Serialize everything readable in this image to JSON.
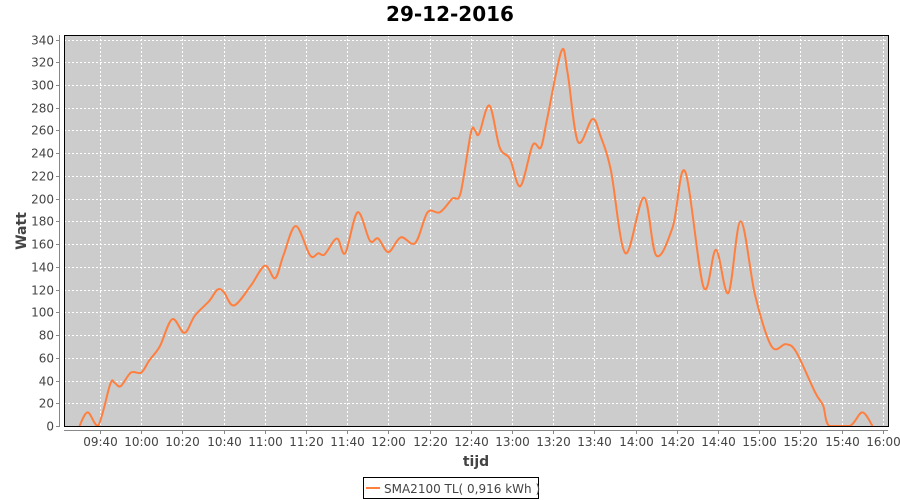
{
  "chart_data": {
    "type": "line",
    "title": "29-12-2016",
    "xlabel": "tijd",
    "ylabel": "Watt",
    "xlim": [
      "09:22:30",
      "16:02:30"
    ],
    "ylim": [
      0,
      344
    ],
    "x_ticks": [
      "09:40",
      "10:00",
      "10:20",
      "10:40",
      "11:00",
      "11:20",
      "11:40",
      "12:00",
      "12:20",
      "12:40",
      "13:00",
      "13:20",
      "13:40",
      "14:00",
      "14:20",
      "14:40",
      "15:00",
      "15:20",
      "15:40",
      "16:00"
    ],
    "y_ticks": [
      0,
      20,
      40,
      60,
      80,
      100,
      120,
      140,
      160,
      180,
      200,
      220,
      240,
      260,
      280,
      300,
      320,
      340
    ],
    "grid": true,
    "plot_background": "#cccccc",
    "grid_color": "#ffffff",
    "legend_placement": "bottom",
    "series": [
      {
        "name": "SMA2100 TL( 0,916 kWh )",
        "color": "#ff7f3f",
        "x": [
          "09:30",
          "09:34",
          "09:39",
          "09:45",
          "09:47",
          "09:50",
          "09:55",
          "10:00",
          "10:04",
          "10:09",
          "10:15",
          "10:21",
          "10:26",
          "10:33",
          "10:37",
          "10:40",
          "10:45",
          "10:53",
          "11:00",
          "11:05",
          "11:09",
          "11:15",
          "11:22",
          "11:26",
          "11:29",
          "11:35",
          "11:39",
          "11:45",
          "11:51",
          "11:55",
          "12:00",
          "12:06",
          "12:13",
          "12:19",
          "12:25",
          "12:31",
          "12:35",
          "12:40",
          "12:42",
          "12:44",
          "12:49",
          "12:54",
          "12:59",
          "13:04",
          "13:10",
          "13:14",
          "13:17",
          "13:24",
          "13:27",
          "13:32",
          "13:39",
          "13:43",
          "13:48",
          "13:55",
          "14:04",
          "14:10",
          "14:18",
          "14:24",
          "14:33",
          "14:39",
          "14:45",
          "14:51",
          "14:58",
          "15:06",
          "15:13",
          "15:18",
          "15:27",
          "15:31",
          "15:34",
          "15:44",
          "15:50",
          "15:55"
        ],
        "values": [
          0,
          12,
          0,
          37,
          38,
          35,
          47,
          47,
          58,
          70,
          94,
          82,
          97,
          110,
          120,
          118,
          106,
          123,
          141,
          130,
          150,
          176,
          150,
          152,
          151,
          165,
          152,
          188,
          163,
          165,
          153,
          166,
          161,
          188,
          188,
          200,
          205,
          258,
          260,
          257,
          282,
          245,
          235,
          211,
          247,
          245,
          270,
          330,
          310,
          250,
          270,
          255,
          225,
          152,
          201,
          150,
          175,
          224,
          122,
          155,
          117,
          180,
          115,
          70,
          72,
          65,
          30,
          18,
          0,
          0,
          12,
          0
        ]
      }
    ]
  }
}
